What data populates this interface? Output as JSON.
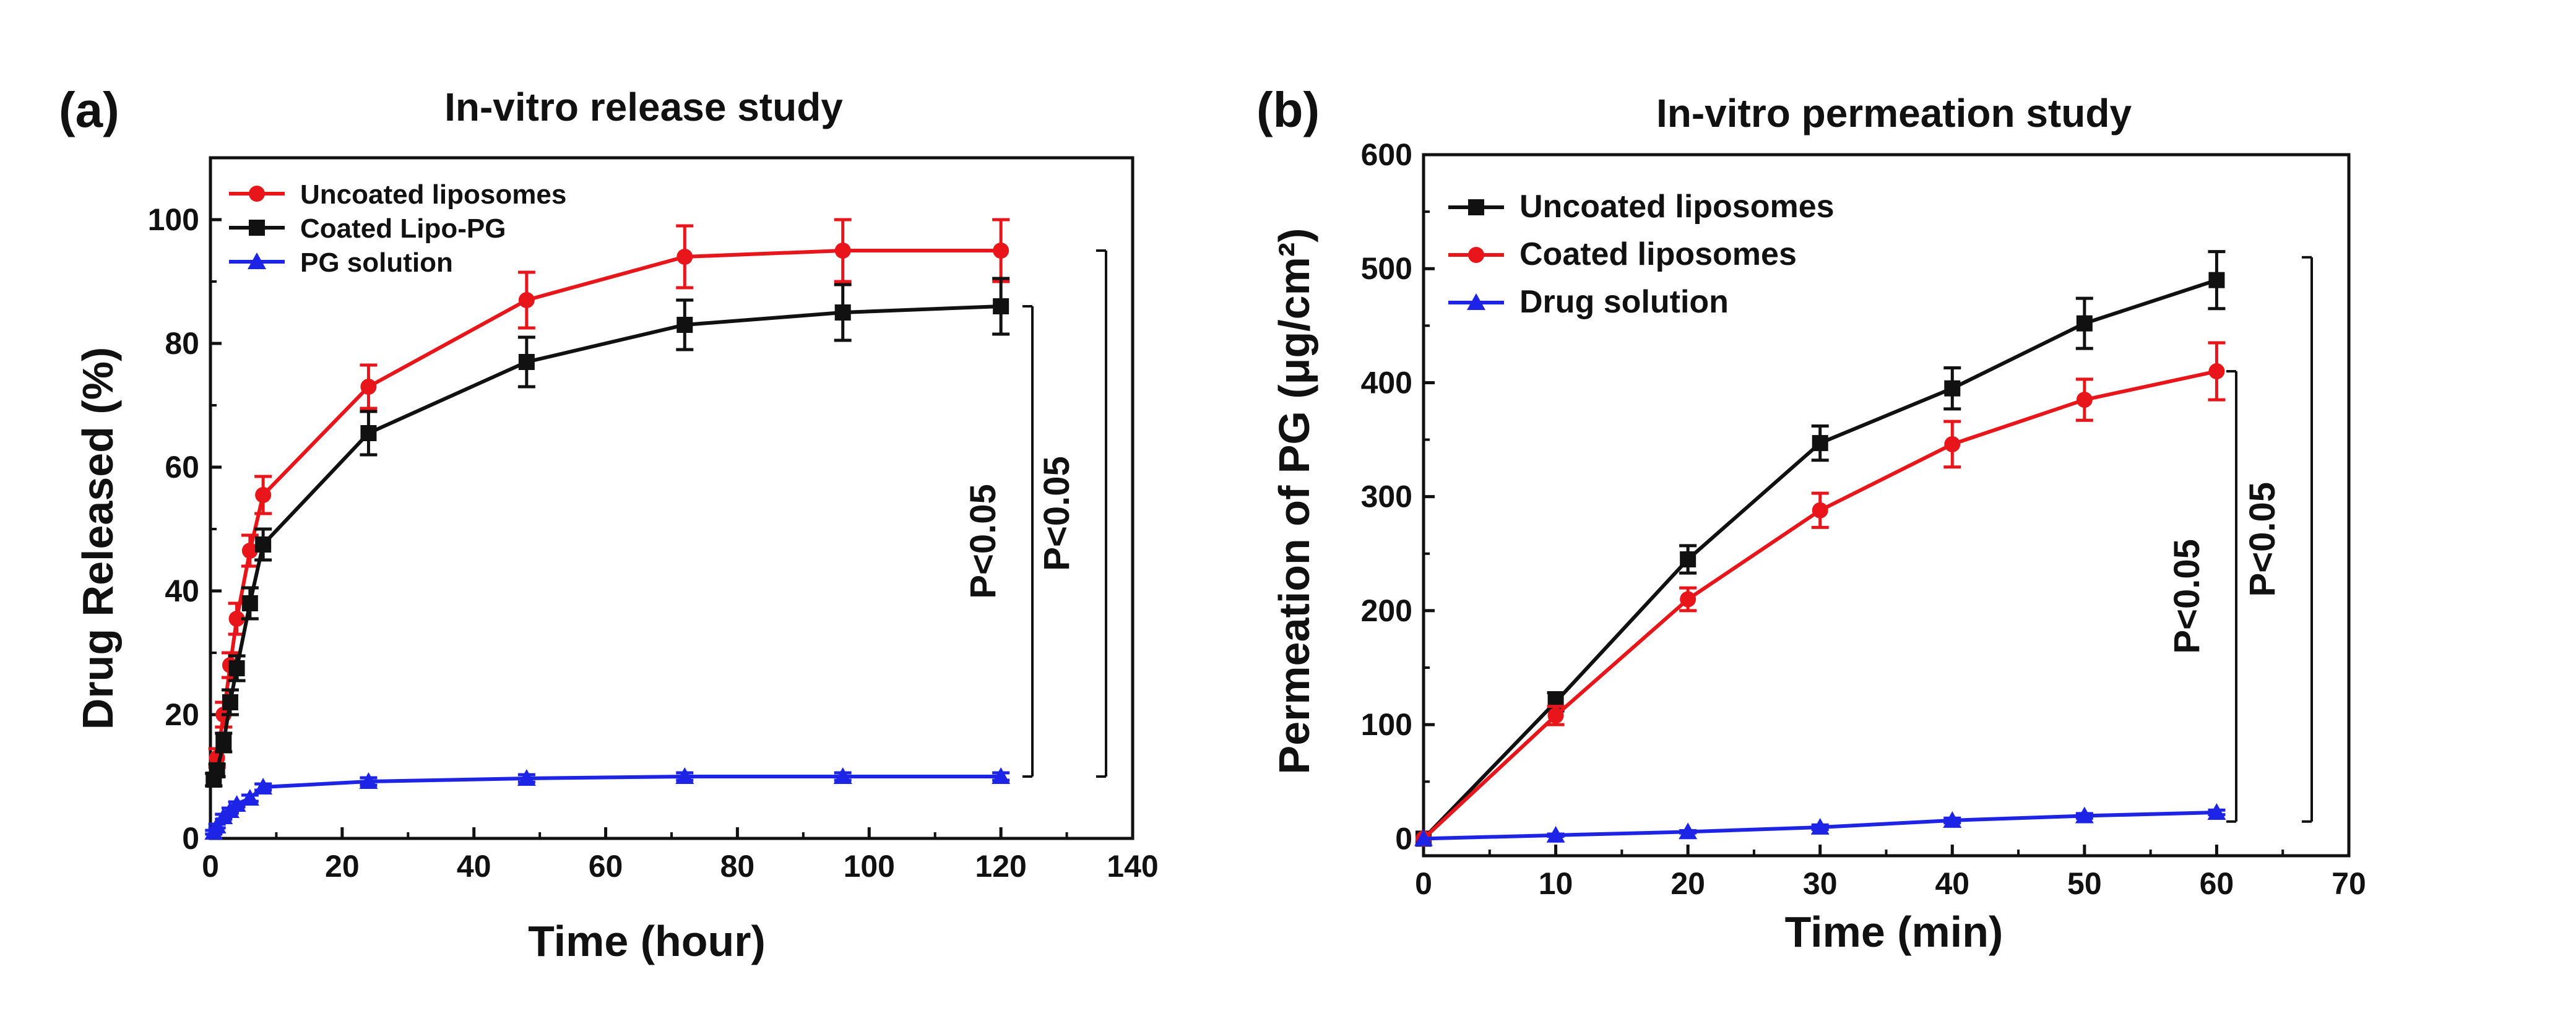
{
  "chart_data": [
    {
      "type": "line",
      "panel_label": "(a)",
      "title": "In-vitro release study",
      "xlabel": "Time (hour)",
      "ylabel": "Drug Released (%)",
      "xlim": [
        0,
        140
      ],
      "ylim": [
        0,
        110
      ],
      "xticks": [
        0,
        20,
        40,
        60,
        80,
        100,
        120,
        140
      ],
      "yticks": [
        0,
        20,
        40,
        60,
        80,
        100
      ],
      "legend_position": "top-left",
      "grid": false,
      "series": [
        {
          "name": "Uncoated liposomes",
          "color": "#e8161b",
          "marker": "circle",
          "x": [
            0.5,
            1,
            2,
            3,
            4,
            6,
            8,
            24,
            48,
            72,
            96,
            120
          ],
          "y": [
            9.5,
            13,
            20,
            28,
            35.5,
            46.5,
            55.5,
            73,
            87,
            94,
            95,
            95
          ],
          "err": [
            1,
            1.5,
            2,
            2,
            2.5,
            2.5,
            3,
            3.5,
            4.5,
            5,
            5,
            5
          ]
        },
        {
          "name": "Coated Lipo-PG",
          "color": "#111111",
          "marker": "square",
          "x": [
            0.5,
            1,
            2,
            3,
            4,
            6,
            8,
            24,
            48,
            72,
            96,
            120
          ],
          "y": [
            9.5,
            11,
            15.5,
            22,
            27.5,
            38,
            47.5,
            65.5,
            77,
            83,
            85,
            86
          ],
          "err": [
            1,
            1,
            1.5,
            2,
            2,
            2.5,
            2.5,
            3.5,
            4,
            4,
            4.5,
            4.5
          ]
        },
        {
          "name": "PG solution",
          "color": "#1d24e6",
          "marker": "triangle",
          "x": [
            0.5,
            1,
            2,
            3,
            4,
            6,
            8,
            24,
            48,
            72,
            96,
            120
          ],
          "y": [
            1,
            2,
            3.5,
            4.5,
            5.5,
            6.5,
            8.3,
            9.2,
            9.7,
            10,
            10,
            10
          ],
          "err": [
            0.3,
            0.3,
            0.4,
            0.4,
            0.4,
            0.5,
            0.5,
            0.6,
            0.6,
            0.6,
            0.6,
            0.6
          ]
        }
      ],
      "annotations": [
        {
          "text": "P<0.05",
          "from": 86,
          "to": 10
        },
        {
          "text": "P<0.05",
          "from": 95,
          "to": 10
        }
      ]
    },
    {
      "type": "line",
      "panel_label": "(b)",
      "title": "In-vitro permeation study",
      "xlabel": "Time (min)",
      "ylabel": "Permeation of PG (μg/cm²)",
      "xlim": [
        0,
        70
      ],
      "ylim": [
        -15,
        600
      ],
      "xticks": [
        0,
        10,
        20,
        30,
        40,
        50,
        60,
        70
      ],
      "yticks": [
        0,
        100,
        200,
        300,
        400,
        500,
        600
      ],
      "legend_position": "top-left",
      "grid": false,
      "series": [
        {
          "name": "Uncoated liposomes",
          "color": "#111111",
          "marker": "square",
          "x": [
            0,
            10,
            20,
            30,
            40,
            50,
            60
          ],
          "y": [
            0,
            120,
            245,
            347,
            395,
            452,
            490
          ],
          "err": [
            0,
            8,
            12,
            15,
            18,
            22,
            25
          ]
        },
        {
          "name": "Coated liposomes",
          "color": "#e8161b",
          "marker": "circle",
          "x": [
            0,
            10,
            20,
            30,
            40,
            50,
            60
          ],
          "y": [
            0,
            108,
            210,
            288,
            346,
            385,
            410
          ],
          "err": [
            0,
            8,
            10,
            15,
            20,
            18,
            25
          ]
        },
        {
          "name": "Drug solution",
          "color": "#1d24e6",
          "marker": "triangle",
          "x": [
            0,
            10,
            20,
            30,
            40,
            50,
            60
          ],
          "y": [
            0,
            3,
            6,
            10,
            16,
            20,
            23
          ],
          "err": [
            0,
            1,
            1,
            2,
            2,
            2,
            2
          ]
        }
      ],
      "annotations": [
        {
          "text": "P<0.05",
          "from": 410,
          "to": 15
        },
        {
          "text": "P<0.05",
          "from": 510,
          "to": 15
        }
      ]
    }
  ]
}
